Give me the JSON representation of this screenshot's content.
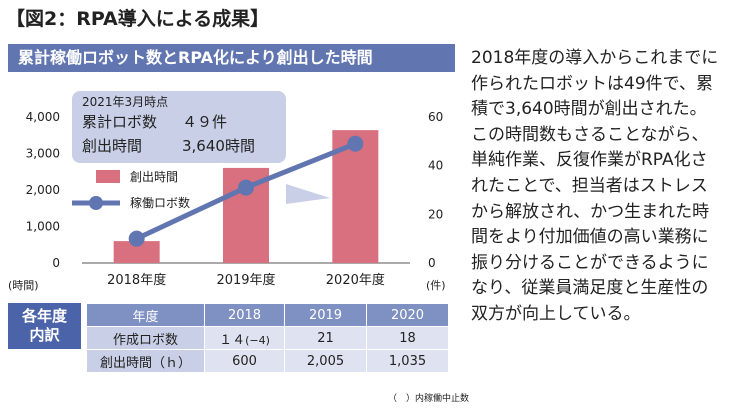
{
  "title": "【図2：RPA導入による成果】",
  "banner": "累計稼働ロボット数とRPA化により創出した時間",
  "callout": {
    "date": "2021年3月時点",
    "robots_label": "累計ロボ数",
    "robots_value": "４９件",
    "hours_label": "創出時間",
    "hours_value": "3,640時間"
  },
  "chart_data": {
    "type": "bar+line",
    "categories": [
      "2018年度",
      "2019年度",
      "2020年度"
    ],
    "series": [
      {
        "name": "創出時間",
        "type": "bar",
        "axis": "left",
        "values": [
          600,
          2605,
          3640
        ],
        "color": "#d9707f"
      },
      {
        "name": "稼働ロボ数",
        "type": "line",
        "axis": "right",
        "values": [
          10,
          31,
          49
        ],
        "color": "#6176b0"
      }
    ],
    "y_left": {
      "unit": "(時間)",
      "lim": [
        0,
        4000
      ],
      "ticks": [
        "0",
        "1,000",
        "2,000",
        "3,000",
        "4,000"
      ]
    },
    "y_right": {
      "unit": "(件)",
      "lim": [
        0,
        60
      ],
      "ticks": [
        "0",
        "20",
        "40",
        "60"
      ]
    }
  },
  "table": {
    "row_header": [
      "各年度",
      "内訳"
    ],
    "columns": [
      "年度",
      "2018",
      "2019",
      "2020"
    ],
    "rows": [
      {
        "label": "作成ロボ数",
        "c2018": "１４",
        "c2018_note": "(−4)",
        "c2019": "21",
        "c2020": "18"
      },
      {
        "label": "創出時間（ｈ）",
        "c2018": "600",
        "c2019": "2,005",
        "c2020": "1,035"
      }
    ]
  },
  "note": "（　）内稼働中止数",
  "paragraph": "2018年度の導入からこれまでに作られたロボットは49件で、累積で3,640時間が創出された。この時間数もさることながら、単純作業、反復作業がRPA化されたことで、担当者はストレスから解放され、かつ生まれた時間をより付加価値の高い業務に振り分けることができるようになり、従業員満足度と生産性の双方が向上している。"
}
